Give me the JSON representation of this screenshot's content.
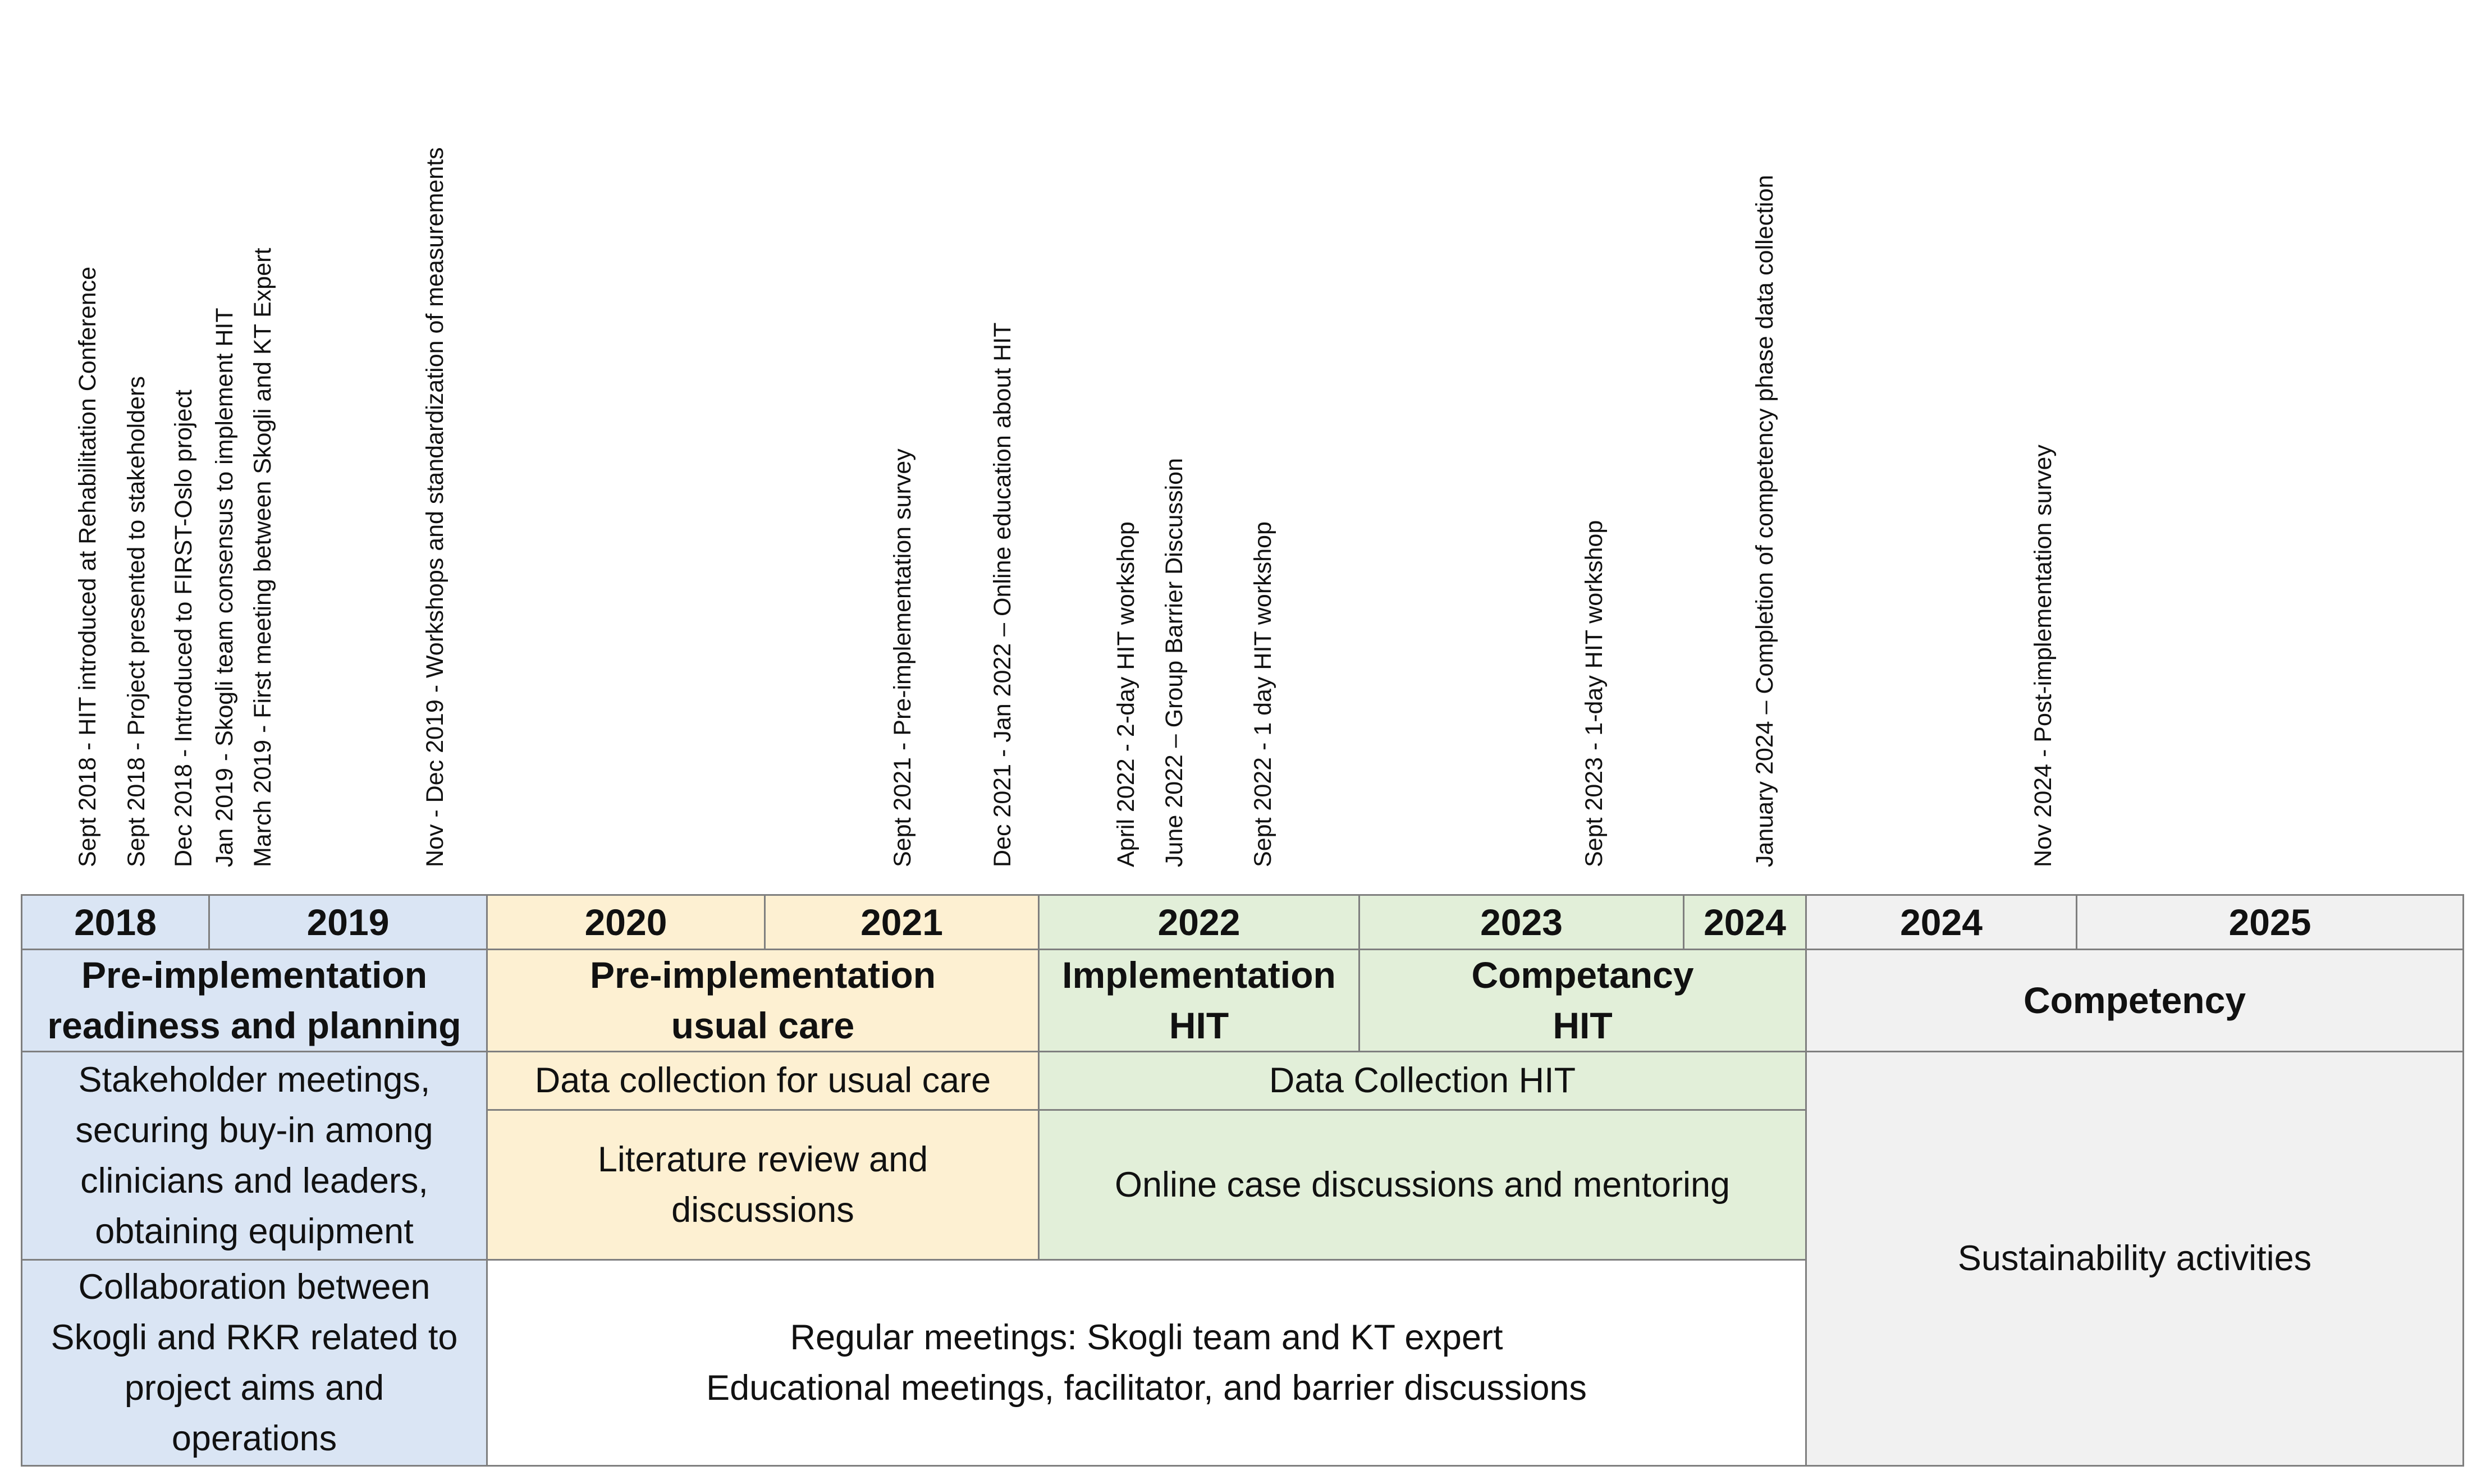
{
  "colors": {
    "blue": "#dae5f4",
    "yellow": "#fdf0d2",
    "green": "#e2efd9",
    "gray": "#f1f1f1",
    "white": "#ffffff",
    "border": "#7f7f7f"
  },
  "events": [
    "Sept 2018 - HIT introduced at Rehabilitation Conference",
    "Sept 2018 - Project presented to stakeholders",
    "Dec 2018 - Introduced to FIRST-Oslo project",
    "Jan 2019 - Skogli team consensus to implement HIT",
    "March 2019 - First meeting between Skogli and KT Expert",
    "Nov - Dec 2019 - Workshops and standardization of measurements",
    "Sept 2021 - Pre-implementation survey",
    "Dec 2021 - Jan 2022 – Online education about HIT",
    "April 2022 - 2-day HIT workshop",
    "June 2022 – Group Barrier Discussion",
    "Sept 2022 - 1 day HIT workshop",
    "Sept 2023 - 1-day HIT workshop",
    "January 2024 – Completion of competency phase data collection",
    "Nov 2024 - Post-implementation survey"
  ],
  "years": [
    "2018",
    "2019",
    "2020",
    "2021",
    "2022",
    "2023",
    "2024",
    "2024",
    "2025"
  ],
  "phases": [
    "Pre-implementation\nreadiness and planning",
    "Pre-implementation\nusual care",
    "Implementation\nHIT",
    "Competancy\nHIT",
    "Competency"
  ],
  "activities": [
    "Stakeholder meetings,\nsecuring buy-in among\nclinicians and leaders,\nobtaining equipment",
    "Data collection for usual care",
    "Data Collection HIT",
    "Sustainability activities",
    "Literature review and\ndiscussions",
    "Online case discussions and mentoring",
    "Collaboration between\nSkogli and RKR related to\nproject aims and\noperations",
    "Regular meetings: Skogli team and KT expert\nEducational meetings, facilitator, and barrier discussions"
  ]
}
